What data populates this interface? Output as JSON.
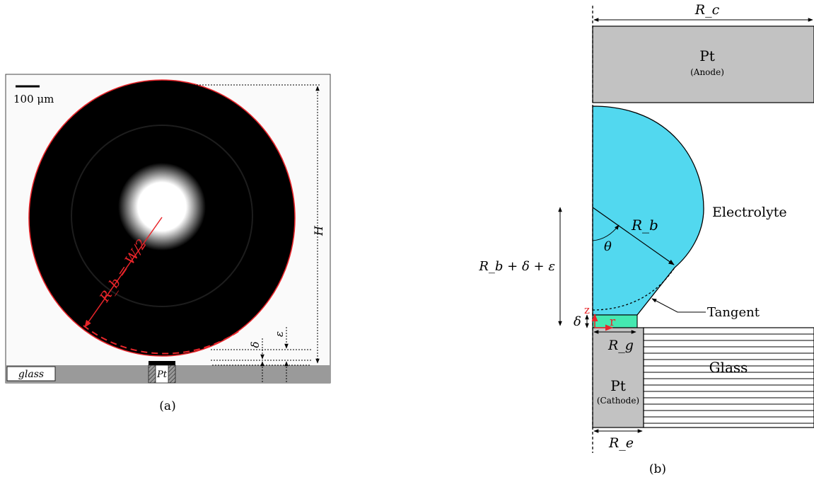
{
  "panel_a": {
    "caption": "(a)",
    "scale_bar": "100 μm",
    "radius_label": "R_b = W/2",
    "label_H": "H",
    "label_delta": "δ",
    "label_epsilon": "ε",
    "label_glass": "glass",
    "label_pt": "Pt"
  },
  "panel_b": {
    "caption": "(b)",
    "label_Rc": "R_c",
    "label_anode_title": "Pt",
    "label_anode_sub": "(Anode)",
    "label_electrolyte": "Electrolyte",
    "label_Rb": "R_b",
    "label_theta": "θ",
    "label_height": "R_b + δ + ε",
    "label_tangent": "Tangent",
    "label_delta": "δ",
    "label_z": "z",
    "label_r": "r",
    "label_Rg": "R_g",
    "label_glass": "Glass",
    "label_cathode_title": "Pt",
    "label_cathode_sub": "(Cathode)",
    "label_Re": "R_e"
  },
  "colors": {
    "bubble_fill": "#52d8ef",
    "gas_layer": "#44e8b0",
    "metal_gray": "#c2c2c2",
    "glass_gray": "#9a9a9a",
    "annotation_red": "#e8252a"
  }
}
